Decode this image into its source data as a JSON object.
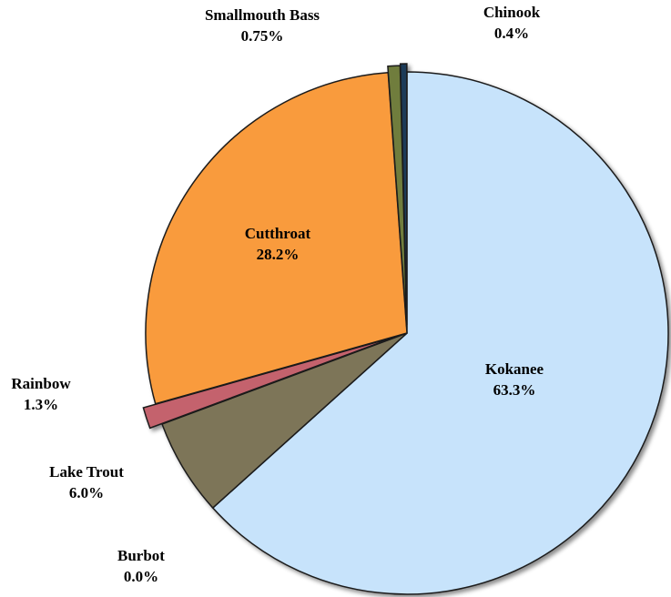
{
  "chart_data": {
    "type": "pie",
    "categories": [
      "Kokanee",
      "Burbot",
      "Lake Trout",
      "Rainbow",
      "Cutthroat",
      "Smallmouth Bass",
      "Chinook"
    ],
    "values": [
      63.3,
      0.0,
      6.0,
      1.3,
      28.2,
      0.75,
      0.4
    ],
    "value_labels": [
      "63.3%",
      "0.0%",
      "6.0%",
      "1.3%",
      "28.2%",
      "0.75%",
      "0.4%"
    ],
    "colors": [
      "#c7e3fb",
      "#8a8a8a",
      "#7d7459",
      "#c4626d",
      "#f99b3d",
      "#6f7d3c",
      "#1e3a58"
    ]
  }
}
